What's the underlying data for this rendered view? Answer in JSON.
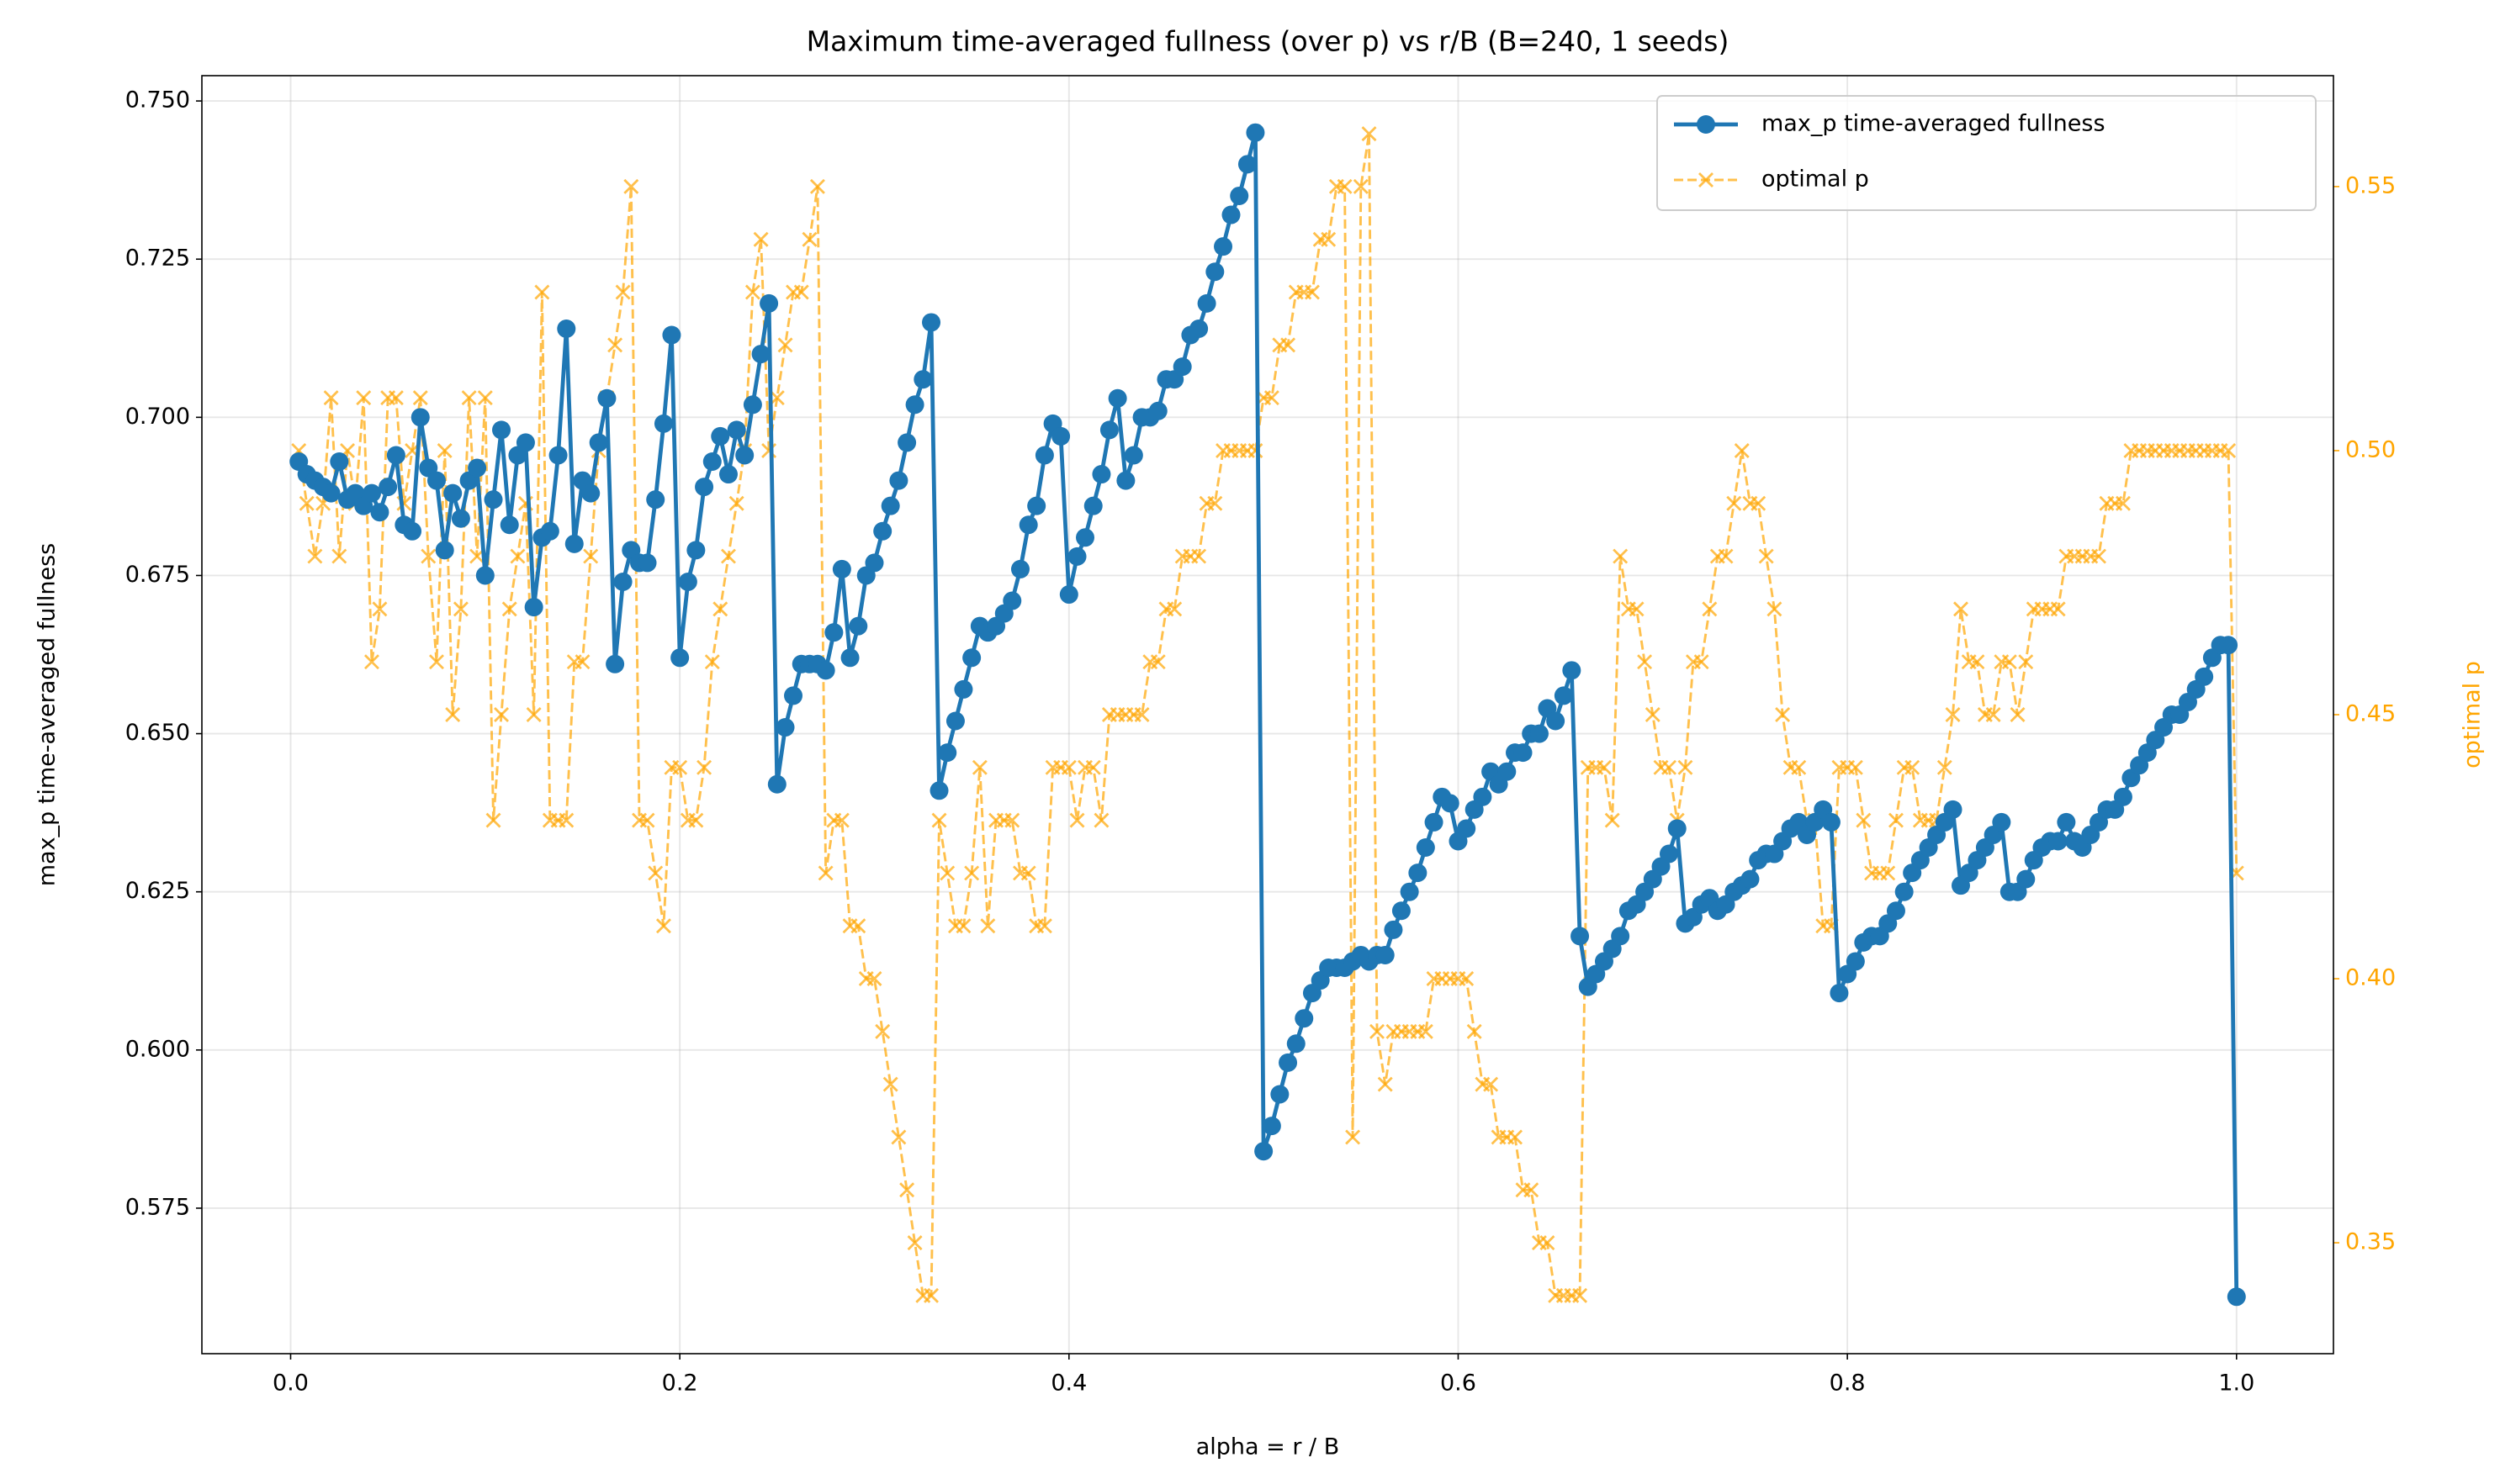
{
  "chart_data": {
    "type": "line",
    "title": "Maximum time-averaged fullness (over p) vs r/B (B=240, 1 seeds)",
    "xlabel": "alpha = r / B",
    "ylabel": "max_p time-averaged fullness",
    "y2label": "optimal p",
    "grid": true,
    "legend": "upper right",
    "xlim": [
      -0.0456,
      1.0498
    ],
    "ylim": [
      0.552,
      0.754
    ],
    "y2lim": [
      0.329,
      0.571
    ],
    "xticks": [
      {
        "value": 0,
        "label": "0.0"
      },
      0.2,
      0.4,
      0.6,
      0.8,
      {
        "value": 1,
        "label": "1.0"
      }
    ],
    "yticks": [
      0.575,
      {
        "value": 0.6,
        "label": "0.600"
      },
      0.625,
      {
        "value": 0.65,
        "label": "0.650"
      },
      0.675,
      {
        "value": 0.7,
        "label": "0.700"
      },
      0.725,
      {
        "value": 0.75,
        "label": "0.750"
      }
    ],
    "y2ticks": [
      0.35,
      {
        "value": 0.4,
        "label": "0.40"
      },
      0.45,
      {
        "value": 0.5,
        "label": "0.50"
      },
      0.55
    ],
    "x": [
      0.0042,
      0.0083,
      0.0125,
      0.0167,
      0.0208,
      0.025,
      0.0292,
      0.0333,
      0.0375,
      0.0417,
      0.0458,
      0.05,
      0.0542,
      0.0583,
      0.0625,
      0.0667,
      0.0708,
      0.075,
      0.0792,
      0.0833,
      0.0875,
      0.0917,
      0.0958,
      0.1,
      0.1042,
      0.1083,
      0.1125,
      0.1167,
      0.1208,
      0.125,
      0.1292,
      0.1333,
      0.1375,
      0.1417,
      0.1458,
      0.15,
      0.1542,
      0.1583,
      0.1625,
      0.1667,
      0.1708,
      0.175,
      0.1792,
      0.1833,
      0.1875,
      0.1917,
      0.1958,
      0.2,
      0.2042,
      0.2083,
      0.2125,
      0.2167,
      0.2208,
      0.225,
      0.2292,
      0.2333,
      0.2375,
      0.2417,
      0.2458,
      0.25,
      0.2542,
      0.2583,
      0.2625,
      0.2667,
      0.2708,
      0.275,
      0.2792,
      0.2833,
      0.2875,
      0.2917,
      0.2958,
      0.3,
      0.3042,
      0.3083,
      0.3125,
      0.3167,
      0.3208,
      0.325,
      0.3292,
      0.3333,
      0.3375,
      0.3417,
      0.3458,
      0.35,
      0.3542,
      0.3583,
      0.3625,
      0.3667,
      0.3708,
      0.375,
      0.3792,
      0.3833,
      0.3875,
      0.3917,
      0.3958,
      0.4,
      0.4042,
      0.4083,
      0.4125,
      0.4167,
      0.4208,
      0.425,
      0.4292,
      0.4333,
      0.4375,
      0.4417,
      0.4458,
      0.45,
      0.4542,
      0.4583,
      0.4625,
      0.4667,
      0.4708,
      0.475,
      0.4792,
      0.4833,
      0.4875,
      0.4917,
      0.4958,
      0.5,
      0.5042,
      0.5083,
      0.5125,
      0.5167,
      0.5208,
      0.525,
      0.5292,
      0.5333,
      0.5375,
      0.5417,
      0.5458,
      0.55,
      0.5542,
      0.5583,
      0.5625,
      0.5667,
      0.5708,
      0.575,
      0.5792,
      0.5833,
      0.5875,
      0.5917,
      0.5958,
      0.6,
      0.6042,
      0.6083,
      0.6125,
      0.6167,
      0.6208,
      0.625,
      0.6292,
      0.6333,
      0.6375,
      0.6417,
      0.6458,
      0.65,
      0.6542,
      0.6583,
      0.6625,
      0.6667,
      0.6708,
      0.675,
      0.6792,
      0.6833,
      0.6875,
      0.6917,
      0.6958,
      0.7,
      0.7042,
      0.7083,
      0.7125,
      0.7167,
      0.7208,
      0.725,
      0.7292,
      0.7333,
      0.7375,
      0.7417,
      0.7458,
      0.75,
      0.7542,
      0.7583,
      0.7625,
      0.7667,
      0.7708,
      0.775,
      0.7792,
      0.7833,
      0.7875,
      0.7917,
      0.7958,
      0.8,
      0.8042,
      0.8083,
      0.8125,
      0.8167,
      0.8208,
      0.825,
      0.8292,
      0.8333,
      0.8375,
      0.8417,
      0.8458,
      0.85,
      0.8542,
      0.8583,
      0.8625,
      0.8667,
      0.8708,
      0.875,
      0.8792,
      0.8833,
      0.8875,
      0.8917,
      0.8958,
      0.9,
      0.9042,
      0.9083,
      0.9125,
      0.9167,
      0.9208,
      0.925,
      0.9292,
      0.9333,
      0.9375,
      0.9417,
      0.9458,
      0.95,
      0.9542,
      0.9583,
      0.9625,
      0.9667,
      0.9708,
      0.975,
      0.9792,
      0.9833,
      0.9875,
      0.9917,
      0.9958,
      1.0
    ],
    "series": [
      {
        "name": "max_p time-averaged fullness",
        "color": "#1f77b4",
        "marker": "o",
        "linestyle": "solid",
        "values": [
          0.693,
          0.691,
          0.69,
          0.689,
          0.688,
          0.693,
          0.687,
          0.688,
          0.686,
          0.688,
          0.685,
          0.689,
          0.694,
          0.683,
          0.682,
          0.7,
          0.692,
          0.69,
          0.679,
          0.688,
          0.684,
          0.69,
          0.692,
          0.675,
          0.687,
          0.698,
          0.683,
          0.694,
          0.696,
          0.67,
          0.681,
          0.682,
          0.694,
          0.714,
          0.68,
          0.69,
          0.688,
          0.696,
          0.703,
          0.661,
          0.674,
          0.679,
          0.677,
          0.677,
          0.687,
          0.699,
          0.713,
          0.662,
          0.674,
          0.679,
          0.689,
          0.693,
          0.697,
          0.691,
          0.698,
          0.694,
          0.702,
          0.71,
          0.718,
          0.642,
          0.651,
          0.656,
          0.661,
          0.661,
          0.661,
          0.66,
          0.666,
          0.676,
          0.662,
          0.667,
          0.675,
          0.677,
          0.682,
          0.686,
          0.69,
          0.696,
          0.702,
          0.706,
          0.715,
          0.641,
          0.647,
          0.652,
          0.657,
          0.662,
          0.667,
          0.666,
          0.667,
          0.669,
          0.671,
          0.676,
          0.683,
          0.686,
          0.694,
          0.699,
          0.697,
          0.672,
          0.678,
          0.681,
          0.686,
          0.691,
          0.698,
          0.703,
          0.69,
          0.694,
          0.7,
          0.7,
          0.701,
          0.706,
          0.706,
          0.708,
          0.713,
          0.714,
          0.718,
          0.723,
          0.727,
          0.732,
          0.735,
          0.74,
          0.745,
          0.584,
          0.588,
          0.593,
          0.598,
          0.601,
          0.605,
          0.609,
          0.611,
          0.613,
          0.613,
          0.613,
          0.614,
          0.615,
          0.614,
          0.615,
          0.615,
          0.619,
          0.622,
          0.625,
          0.628,
          0.632,
          0.636,
          0.64,
          0.639,
          0.633,
          0.635,
          0.638,
          0.64,
          0.644,
          0.642,
          0.644,
          0.647,
          0.647,
          0.65,
          0.65,
          0.654,
          0.652,
          0.656,
          0.66,
          0.618,
          0.61,
          0.612,
          0.614,
          0.616,
          0.618,
          0.622,
          0.623,
          0.625,
          0.627,
          0.629,
          0.631,
          0.635,
          0.62,
          0.621,
          0.623,
          0.624,
          0.622,
          0.623,
          0.625,
          0.626,
          0.627,
          0.63,
          0.631,
          0.631,
          0.633,
          0.635,
          0.636,
          0.634,
          0.636,
          0.638,
          0.636,
          0.609,
          0.612,
          0.614,
          0.617,
          0.618,
          0.618,
          0.62,
          0.622,
          0.625,
          0.628,
          0.63,
          0.632,
          0.634,
          0.636,
          0.638,
          0.626,
          0.628,
          0.63,
          0.632,
          0.634,
          0.636,
          0.625,
          0.625,
          0.627,
          0.63,
          0.632,
          0.633,
          0.633,
          0.636,
          0.633,
          0.632,
          0.634,
          0.636,
          0.638,
          0.638,
          0.64,
          0.643,
          0.645,
          0.647,
          0.649,
          0.651,
          0.653,
          0.653,
          0.655,
          0.657,
          0.659,
          0.662,
          0.664,
          0.664,
          0.561
        ]
      },
      {
        "name": "optimal p",
        "color": "#ffa500",
        "marker": "x",
        "linestyle": "dashed",
        "axis": "y2",
        "values": [
          0.5,
          0.49,
          0.48,
          0.49,
          0.51,
          0.48,
          0.5,
          0.49,
          0.51,
          0.46,
          0.47,
          0.51,
          0.51,
          0.49,
          0.5,
          0.51,
          0.48,
          0.46,
          0.5,
          0.45,
          0.47,
          0.51,
          0.48,
          0.51,
          0.43,
          0.45,
          0.47,
          0.48,
          0.49,
          0.45,
          0.53,
          0.43,
          0.43,
          0.43,
          0.46,
          0.46,
          0.48,
          0.5,
          0.51,
          0.52,
          0.53,
          0.55,
          0.43,
          0.43,
          0.42,
          0.41,
          0.44,
          0.44,
          0.43,
          0.43,
          0.44,
          0.46,
          0.47,
          0.48,
          0.49,
          0.5,
          0.53,
          0.54,
          0.5,
          0.51,
          0.52,
          0.53,
          0.53,
          0.54,
          0.55,
          0.42,
          0.43,
          0.43,
          0.41,
          0.41,
          0.4,
          0.4,
          0.39,
          0.38,
          0.37,
          0.36,
          0.35,
          0.34,
          0.34,
          0.43,
          0.42,
          0.41,
          0.41,
          0.42,
          0.44,
          0.41,
          0.43,
          0.43,
          0.43,
          0.42,
          0.42,
          0.41,
          0.41,
          0.44,
          0.44,
          0.44,
          0.43,
          0.44,
          0.44,
          0.43,
          0.45,
          0.45,
          0.45,
          0.45,
          0.45,
          0.46,
          0.46,
          0.47,
          0.47,
          0.48,
          0.48,
          0.48,
          0.49,
          0.49,
          0.5,
          0.5,
          0.5,
          0.5,
          0.5,
          0.51,
          0.51,
          0.52,
          0.52,
          0.53,
          0.53,
          0.53,
          0.54,
          0.54,
          0.55,
          0.55,
          0.37,
          0.55,
          0.56,
          0.39,
          0.38,
          0.39,
          0.39,
          0.39,
          0.39,
          0.39,
          0.4,
          0.4,
          0.4,
          0.4,
          0.4,
          0.39,
          0.38,
          0.38,
          0.37,
          0.37,
          0.37,
          0.36,
          0.36,
          0.35,
          0.35,
          0.34,
          0.34,
          0.34,
          0.34,
          0.44,
          0.44,
          0.44,
          0.43,
          0.48,
          0.47,
          0.47,
          0.46,
          0.45,
          0.44,
          0.44,
          0.43,
          0.44,
          0.46,
          0.46,
          0.47,
          0.48,
          0.48,
          0.49,
          0.5,
          0.49,
          0.49,
          0.48,
          0.47,
          0.45,
          0.44,
          0.44,
          0.43,
          0.43,
          0.41,
          0.41,
          0.44,
          0.44,
          0.44,
          0.43,
          0.42,
          0.42,
          0.42,
          0.43,
          0.44,
          0.44,
          0.43,
          0.43,
          0.43,
          0.44,
          0.45,
          0.47,
          0.46,
          0.46,
          0.45,
          0.45,
          0.46,
          0.46,
          0.45,
          0.46,
          0.47,
          0.47,
          0.47,
          0.47,
          0.48,
          0.48,
          0.48,
          0.48,
          0.48,
          0.49,
          0.49,
          0.49,
          0.5,
          0.5,
          0.5,
          0.5,
          0.5,
          0.5,
          0.5,
          0.5,
          0.5,
          0.5,
          0.5,
          0.5,
          0.5,
          0.42
        ]
      }
    ]
  }
}
